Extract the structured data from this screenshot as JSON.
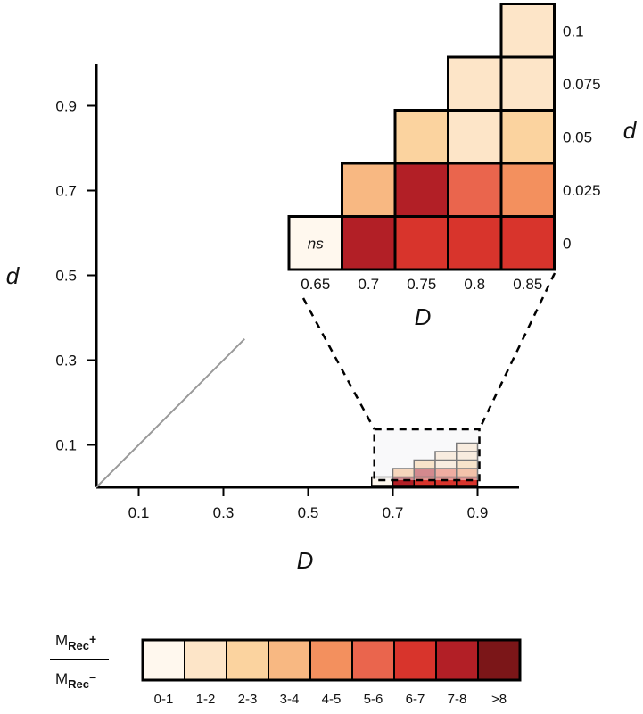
{
  "chart_data": {
    "type": "heatmap",
    "main_axes": {
      "xlabel": "D",
      "ylabel": "d",
      "xticks": [
        "0.1",
        "0.3",
        "0.5",
        "0.7",
        "0.9"
      ],
      "xtick_values": [
        0.1,
        0.3,
        0.5,
        0.7,
        0.9
      ],
      "yticks": [
        "0.1",
        "0.3",
        "0.5",
        "0.7",
        "0.9"
      ],
      "ytick_values": [
        0.1,
        0.3,
        0.5,
        0.7,
        0.9
      ],
      "xlim": [
        0,
        1
      ],
      "ylim": [
        0,
        1
      ],
      "diagonal_line": {
        "from": [
          0,
          0
        ],
        "to": [
          0.35,
          0.35
        ],
        "color": "#999999"
      },
      "zoom_region": {
        "x": [
          0.65,
          0.9
        ],
        "y": [
          0,
          0.1
        ]
      }
    },
    "inset": {
      "xlabel": "D",
      "ylabel": "d",
      "x_categories": [
        "0.65",
        "0.7",
        "0.75",
        "0.8",
        "0.85"
      ],
      "y_categories": [
        "0",
        "0.025",
        "0.05",
        "0.075",
        "0.1"
      ],
      "cells": [
        {
          "D": "0.65",
          "d": "0",
          "bin": 1,
          "label": "ns"
        },
        {
          "D": "0.7",
          "d": "0",
          "bin": 8
        },
        {
          "D": "0.75",
          "d": "0",
          "bin": 7
        },
        {
          "D": "0.8",
          "d": "0",
          "bin": 7
        },
        {
          "D": "0.85",
          "d": "0",
          "bin": 7
        },
        {
          "D": "0.7",
          "d": "0.025",
          "bin": 4
        },
        {
          "D": "0.75",
          "d": "0.025",
          "bin": 8
        },
        {
          "D": "0.8",
          "d": "0.025",
          "bin": 6
        },
        {
          "D": "0.85",
          "d": "0.025",
          "bin": 5
        },
        {
          "D": "0.75",
          "d": "0.05",
          "bin": 3
        },
        {
          "D": "0.8",
          "d": "0.05",
          "bin": 2
        },
        {
          "D": "0.85",
          "d": "0.05",
          "bin": 3
        },
        {
          "D": "0.8",
          "d": "0.075",
          "bin": 2
        },
        {
          "D": "0.85",
          "d": "0.075",
          "bin": 2
        },
        {
          "D": "0.85",
          "d": "0.1",
          "bin": 2
        }
      ]
    },
    "colorbar": {
      "label_top": "M",
      "label_top_sub": "Rec",
      "label_top_sup": "+",
      "label_bottom": "M",
      "label_bottom_sub": "Rec",
      "label_bottom_sup": "−",
      "bins": [
        "0-1",
        "1-2",
        "2-3",
        "3-4",
        "4-5",
        "5-6",
        "6-7",
        "7-8",
        ">8"
      ],
      "colors": [
        "#fff8ee",
        "#fde5c8",
        "#fbd39f",
        "#f8b882",
        "#f3905e",
        "#ea654d",
        "#d8342c",
        "#b21f26",
        "#7b1618"
      ]
    }
  }
}
